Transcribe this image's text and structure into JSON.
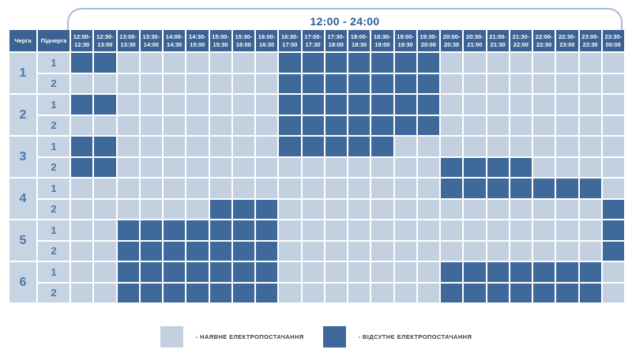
{
  "header": {
    "time_range": "12:00 - 24:00"
  },
  "table": {
    "queue_header": "Черга",
    "subqueue_header": "Підчерга"
  },
  "legend": {
    "available": "- НАЯВНЕ ЕЛЕКТРОПОСТАЧАННЯ",
    "outage": "- ВІДСУТНЄ ЕЛЕКТРОПОСТАЧАННЯ"
  },
  "colors": {
    "outage_bg": "#40699b",
    "available_bg": "#c2d0e0",
    "header_bg": "#3a6292",
    "label_bg": "#c7d4e3",
    "accent_text": "#2a5b97",
    "number_text": "#4b77a9",
    "bracket_stroke": "#a6bbd8",
    "legend_text": "#3d3d3d"
  },
  "chart_data": {
    "type": "heatmap",
    "title": "12:00 - 24:00",
    "value_meaning": {
      "0": "наявне електропостачання",
      "1": "відсутнє електропостачання"
    },
    "legend_position": "bottom",
    "x_categories": [
      "12:00-12:30",
      "12:30-13:00",
      "13:00-13:30",
      "13:30-14:00",
      "14:00-14:30",
      "14:30-15:00",
      "15:00-15:30",
      "15:30-16:00",
      "16:00-16:30",
      "16:30-17:00",
      "17:00-17:30",
      "17:30-18:00",
      "18:00-18:30",
      "18:30-19:00",
      "19:00-19:30",
      "19:30-20:00",
      "20:00-20:30",
      "20:30-21:00",
      "21:00-21:30",
      "21:30-22:00",
      "22:00-22:30",
      "22:30-23:00",
      "23:00-23:30",
      "23:30-00:00"
    ],
    "rows": [
      {
        "queue": "1",
        "subqueue": "1",
        "outage": [
          1,
          1,
          0,
          0,
          0,
          0,
          0,
          0,
          0,
          1,
          1,
          1,
          1,
          1,
          1,
          1,
          0,
          0,
          0,
          0,
          0,
          0,
          0,
          0
        ]
      },
      {
        "queue": "1",
        "subqueue": "2",
        "outage": [
          0,
          0,
          0,
          0,
          0,
          0,
          0,
          0,
          0,
          1,
          1,
          1,
          1,
          1,
          1,
          1,
          0,
          0,
          0,
          0,
          0,
          0,
          0,
          0
        ]
      },
      {
        "queue": "2",
        "subqueue": "1",
        "outage": [
          1,
          1,
          0,
          0,
          0,
          0,
          0,
          0,
          0,
          1,
          1,
          1,
          1,
          1,
          1,
          1,
          0,
          0,
          0,
          0,
          0,
          0,
          0,
          0
        ]
      },
      {
        "queue": "2",
        "subqueue": "2",
        "outage": [
          0,
          0,
          0,
          0,
          0,
          0,
          0,
          0,
          0,
          1,
          1,
          1,
          1,
          1,
          1,
          1,
          0,
          0,
          0,
          0,
          0,
          0,
          0,
          0
        ]
      },
      {
        "queue": "3",
        "subqueue": "1",
        "outage": [
          1,
          1,
          0,
          0,
          0,
          0,
          0,
          0,
          0,
          1,
          1,
          1,
          1,
          1,
          0,
          0,
          0,
          0,
          0,
          0,
          0,
          0,
          0,
          0
        ]
      },
      {
        "queue": "3",
        "subqueue": "2",
        "outage": [
          1,
          1,
          0,
          0,
          0,
          0,
          0,
          0,
          0,
          0,
          0,
          0,
          0,
          0,
          0,
          0,
          1,
          1,
          1,
          1,
          0,
          0,
          0,
          0
        ]
      },
      {
        "queue": "4",
        "subqueue": "1",
        "outage": [
          0,
          0,
          0,
          0,
          0,
          0,
          0,
          0,
          0,
          0,
          0,
          0,
          0,
          0,
          0,
          0,
          1,
          1,
          1,
          1,
          1,
          1,
          1,
          0
        ]
      },
      {
        "queue": "4",
        "subqueue": "2",
        "outage": [
          0,
          0,
          0,
          0,
          0,
          0,
          1,
          1,
          1,
          0,
          0,
          0,
          0,
          0,
          0,
          0,
          0,
          0,
          0,
          0,
          0,
          0,
          0,
          1
        ]
      },
      {
        "queue": "5",
        "subqueue": "1",
        "outage": [
          0,
          0,
          1,
          1,
          1,
          1,
          1,
          1,
          1,
          0,
          0,
          0,
          0,
          0,
          0,
          0,
          0,
          0,
          0,
          0,
          0,
          0,
          0,
          1
        ]
      },
      {
        "queue": "5",
        "subqueue": "2",
        "outage": [
          0,
          0,
          1,
          1,
          1,
          1,
          1,
          1,
          1,
          0,
          0,
          0,
          0,
          0,
          0,
          0,
          0,
          0,
          0,
          0,
          0,
          0,
          0,
          1
        ]
      },
      {
        "queue": "6",
        "subqueue": "1",
        "outage": [
          0,
          0,
          1,
          1,
          1,
          1,
          1,
          1,
          1,
          0,
          0,
          0,
          0,
          0,
          0,
          0,
          1,
          1,
          1,
          1,
          1,
          1,
          1,
          0
        ]
      },
      {
        "queue": "6",
        "subqueue": "2",
        "outage": [
          0,
          0,
          1,
          1,
          1,
          1,
          1,
          1,
          1,
          0,
          0,
          0,
          0,
          0,
          0,
          0,
          1,
          1,
          1,
          1,
          1,
          1,
          1,
          0
        ]
      }
    ]
  }
}
